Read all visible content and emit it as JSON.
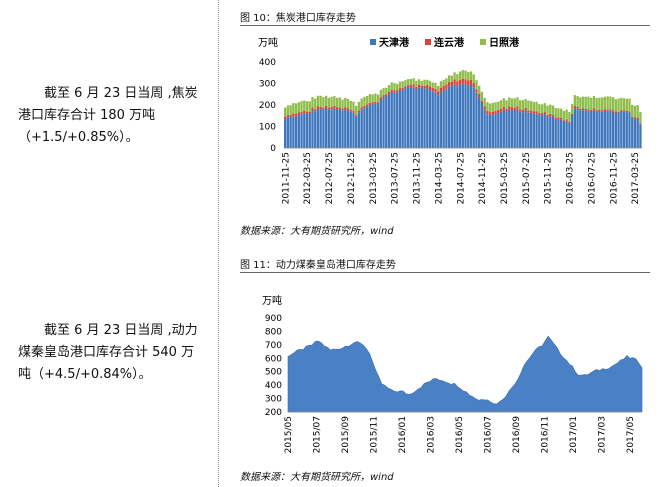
{
  "left": {
    "para1": [
      "截至 6 月 23 日当周 ,焦炭",
      "港口库存合计   180   万吨",
      "（+1.5/+0.85%）。"
    ],
    "para2": [
      "截至 6 月 23 日当周 ,动力",
      "煤秦皇岛港口库存合计 540 万",
      "吨（+4.5/+0.84%）。"
    ]
  },
  "fig1": {
    "title": "图 10：焦炭港口库存走势",
    "source": "数据来源：大有期货研究所，wind",
    "unit": "万吨",
    "colors": {
      "tianjin": "#3f77bd",
      "lianyungang": "#d9433b",
      "rizhao": "#8fbd4a"
    },
    "chart_data": {
      "type": "bar",
      "stacked": true,
      "ylabel": "万吨",
      "ylim": [
        0,
        400
      ],
      "yticks": [
        0,
        100,
        200,
        300,
        400
      ],
      "x_tick_labels": [
        "2011-11-25",
        "2012-03-25",
        "2012-07-25",
        "2012-11-25",
        "2013-03-25",
        "2013-07-25",
        "2013-11-25",
        "2014-03-25",
        "2014-07-25",
        "2014-11-25",
        "2015-03-25",
        "2015-07-25",
        "2015-11-25",
        "2016-03-25",
        "2016-07-25",
        "2016-11-25",
        "2017-03-25"
      ],
      "series": [
        {
          "name": "天津港",
          "keypoints": [
            [
              0,
              140
            ],
            [
              4,
              150
            ],
            [
              8,
              165
            ],
            [
              12,
              175
            ],
            [
              16,
              185
            ],
            [
              20,
              185
            ],
            [
              24,
              175
            ],
            [
              26,
              150
            ],
            [
              28,
              185
            ],
            [
              30,
              190
            ],
            [
              34,
              210
            ],
            [
              38,
              250
            ],
            [
              42,
              270
            ],
            [
              46,
              280
            ],
            [
              50,
              275
            ],
            [
              54,
              270
            ],
            [
              56,
              245
            ],
            [
              58,
              270
            ],
            [
              62,
              290
            ],
            [
              66,
              300
            ],
            [
              68,
              290
            ],
            [
              70,
              260
            ],
            [
              72,
              200
            ],
            [
              74,
              160
            ],
            [
              76,
              150
            ],
            [
              78,
              165
            ],
            [
              80,
              175
            ],
            [
              84,
              175
            ],
            [
              88,
              170
            ],
            [
              92,
              160
            ],
            [
              96,
              150
            ],
            [
              100,
              140
            ],
            [
              102,
              125
            ],
            [
              104,
              115
            ],
            [
              106,
              180
            ],
            [
              110,
              170
            ],
            [
              114,
              170
            ],
            [
              118,
              175
            ],
            [
              122,
              165
            ],
            [
              126,
              160
            ],
            [
              129,
              130
            ],
            [
              130,
              110
            ]
          ]
        },
        {
          "name": "连云港",
          "keypoints": [
            [
              0,
              10
            ],
            [
              30,
              10
            ],
            [
              50,
              12
            ],
            [
              66,
              25
            ],
            [
              72,
              15
            ],
            [
              100,
              8
            ],
            [
              130,
              5
            ]
          ]
        },
        {
          "name": "日照港",
          "keypoints": [
            [
              0,
              45
            ],
            [
              10,
              50
            ],
            [
              20,
              45
            ],
            [
              30,
              40
            ],
            [
              40,
              30
            ],
            [
              50,
              25
            ],
            [
              60,
              30
            ],
            [
              66,
              40
            ],
            [
              70,
              40
            ],
            [
              80,
              40
            ],
            [
              90,
              45
            ],
            [
              100,
              40
            ],
            [
              110,
              55
            ],
            [
              120,
              60
            ],
            [
              130,
              55
            ]
          ]
        }
      ]
    }
  },
  "fig2": {
    "title": "图 11：动力煤秦皇岛港口库存走势",
    "source": "数据来源：大有期货研究所，wind",
    "unit": "万吨",
    "color": "#4a80c4",
    "chart_data": {
      "type": "area",
      "ylabel": "万吨",
      "ylim": [
        200,
        900
      ],
      "yticks": [
        200,
        300,
        400,
        500,
        600,
        700,
        800,
        900
      ],
      "x_tick_labels": [
        "2015/05",
        "2015/07",
        "2015/09",
        "2015/11",
        "2016/01",
        "2016/03",
        "2016/05",
        "2016/07",
        "2016/09",
        "2016/11",
        "2017/01",
        "2017/03",
        "2017/05"
      ],
      "keypoints": [
        [
          0,
          620
        ],
        [
          4,
          660
        ],
        [
          8,
          700
        ],
        [
          10,
          730
        ],
        [
          14,
          660
        ],
        [
          18,
          680
        ],
        [
          22,
          720
        ],
        [
          25,
          700
        ],
        [
          27,
          640
        ],
        [
          29,
          500
        ],
        [
          31,
          410
        ],
        [
          34,
          360
        ],
        [
          38,
          350
        ],
        [
          40,
          330
        ],
        [
          42,
          360
        ],
        [
          46,
          420
        ],
        [
          49,
          450
        ],
        [
          52,
          430
        ],
        [
          56,
          400
        ],
        [
          60,
          330
        ],
        [
          63,
          290
        ],
        [
          66,
          300
        ],
        [
          68,
          260
        ],
        [
          70,
          275
        ],
        [
          73,
          350
        ],
        [
          76,
          450
        ],
        [
          78,
          550
        ],
        [
          81,
          640
        ],
        [
          84,
          700
        ],
        [
          86,
          760
        ],
        [
          88,
          700
        ],
        [
          90,
          640
        ],
        [
          93,
          560
        ],
        [
          96,
          480
        ],
        [
          98,
          470
        ],
        [
          101,
          500
        ],
        [
          104,
          520
        ],
        [
          107,
          540
        ],
        [
          110,
          580
        ],
        [
          112,
          610
        ],
        [
          114,
          600
        ],
        [
          116,
          570
        ],
        [
          117,
          540
        ]
      ]
    }
  }
}
